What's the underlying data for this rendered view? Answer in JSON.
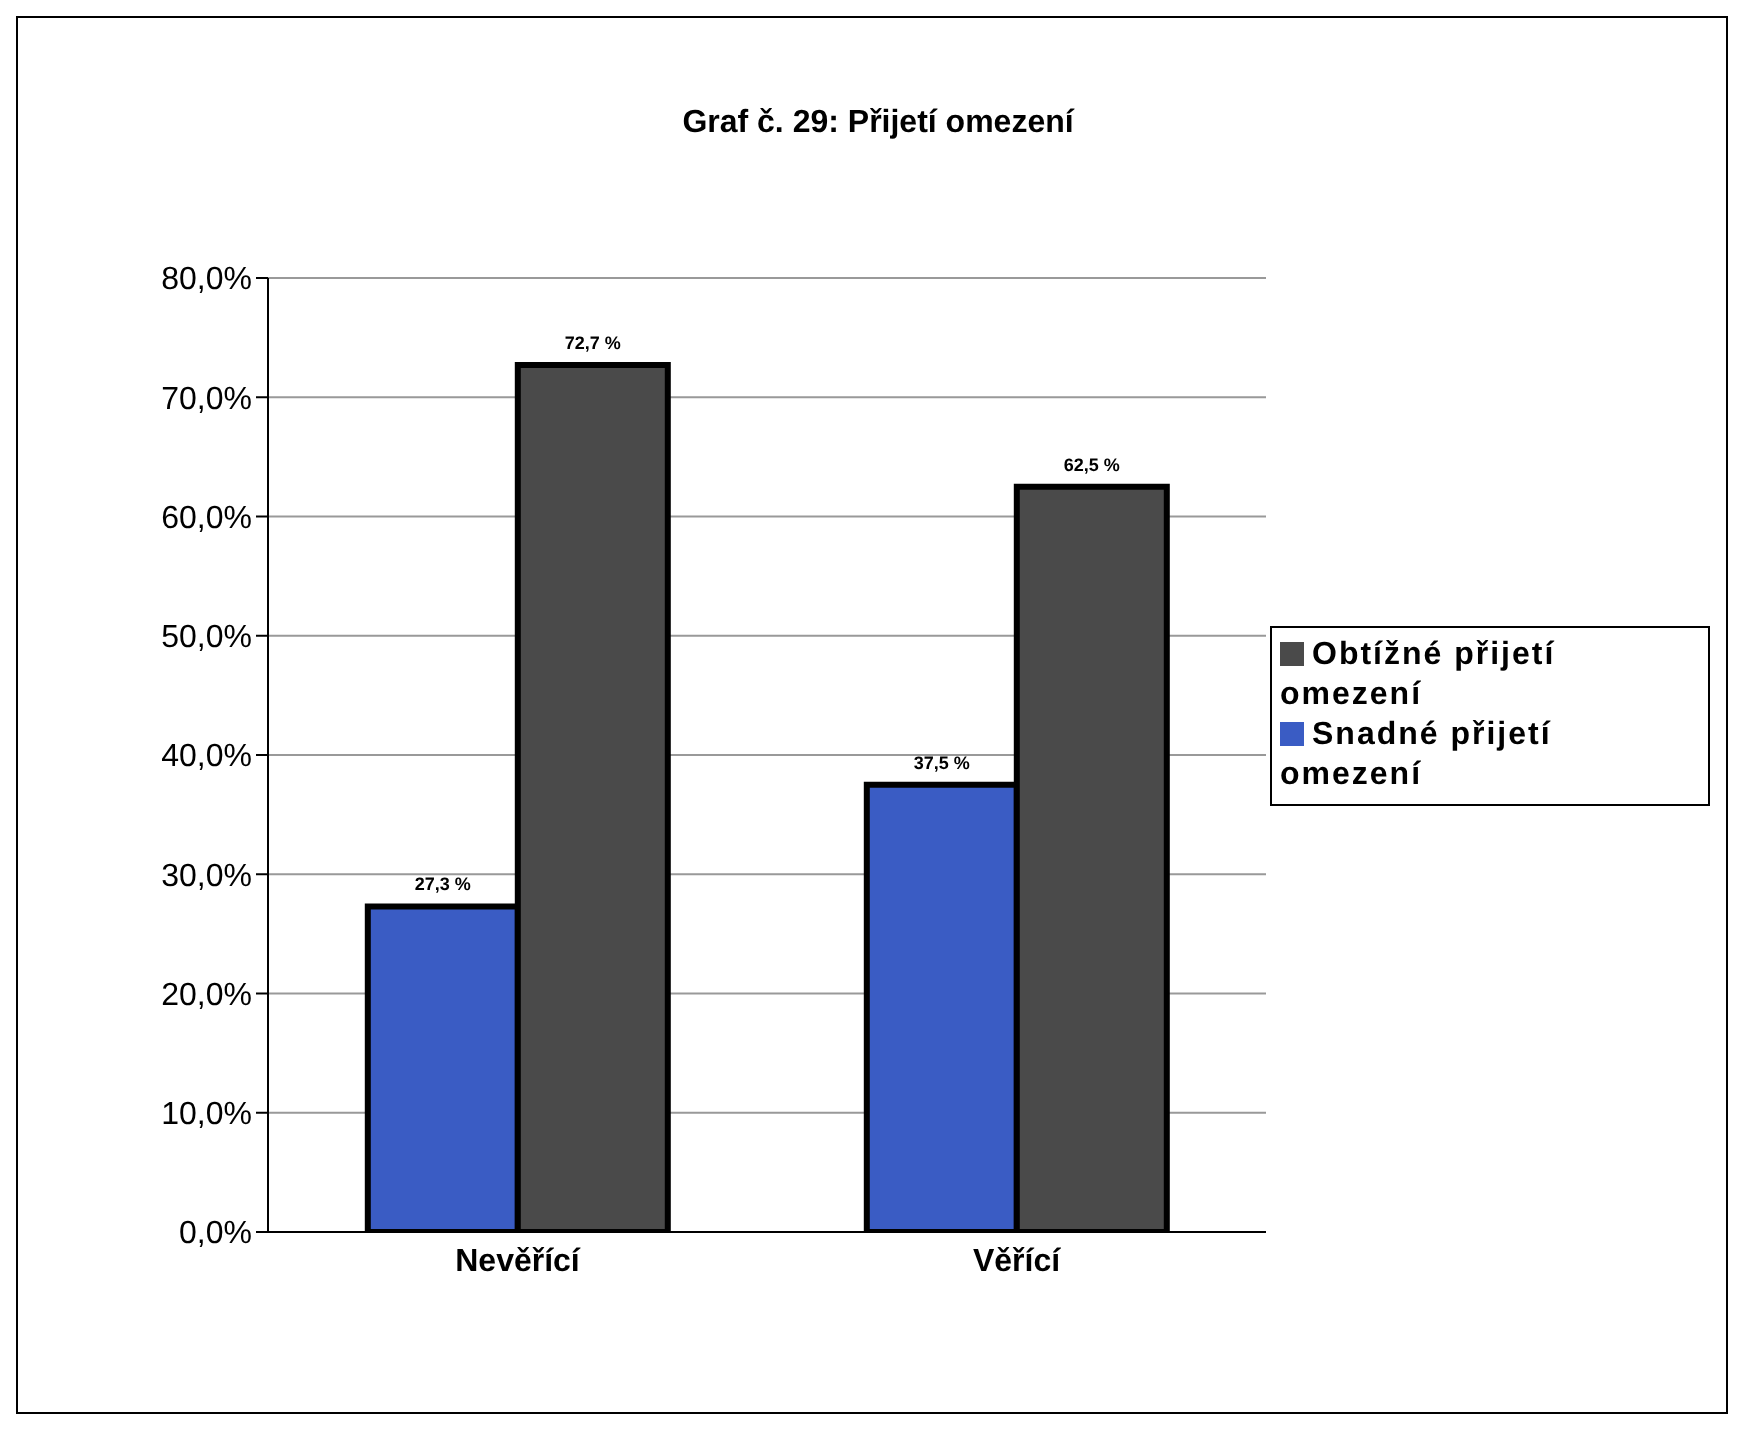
{
  "chart_data": {
    "type": "bar",
    "title": "Graf č. 29: Přijetí omezení",
    "categories": [
      "Nevěřící",
      "Věřící"
    ],
    "series": [
      {
        "name": "Snadné přijetí omezení",
        "color": "#3a5cc4",
        "values": [
          27.3,
          37.5
        ],
        "value_labels": [
          "27,3 %",
          "37,5 %"
        ]
      },
      {
        "name": "Obtížné přijetí omezení",
        "color": "#4a4a4a",
        "values": [
          72.7,
          62.5
        ],
        "value_labels": [
          "72,7 %",
          "62,5 %"
        ]
      }
    ],
    "ylim": [
      0,
      80
    ],
    "yticks": [
      {
        "value": 0,
        "label": "0,0%"
      },
      {
        "value": 10,
        "label": "10,0%"
      },
      {
        "value": 20,
        "label": "20,0%"
      },
      {
        "value": 30,
        "label": "30,0%"
      },
      {
        "value": 40,
        "label": "40,0%"
      },
      {
        "value": 50,
        "label": "50,0%"
      },
      {
        "value": 60,
        "label": "60,0%"
      },
      {
        "value": 70,
        "label": "70,0%"
      },
      {
        "value": 80,
        "label": "80,0%"
      }
    ],
    "grid": "y",
    "legend": "right"
  }
}
